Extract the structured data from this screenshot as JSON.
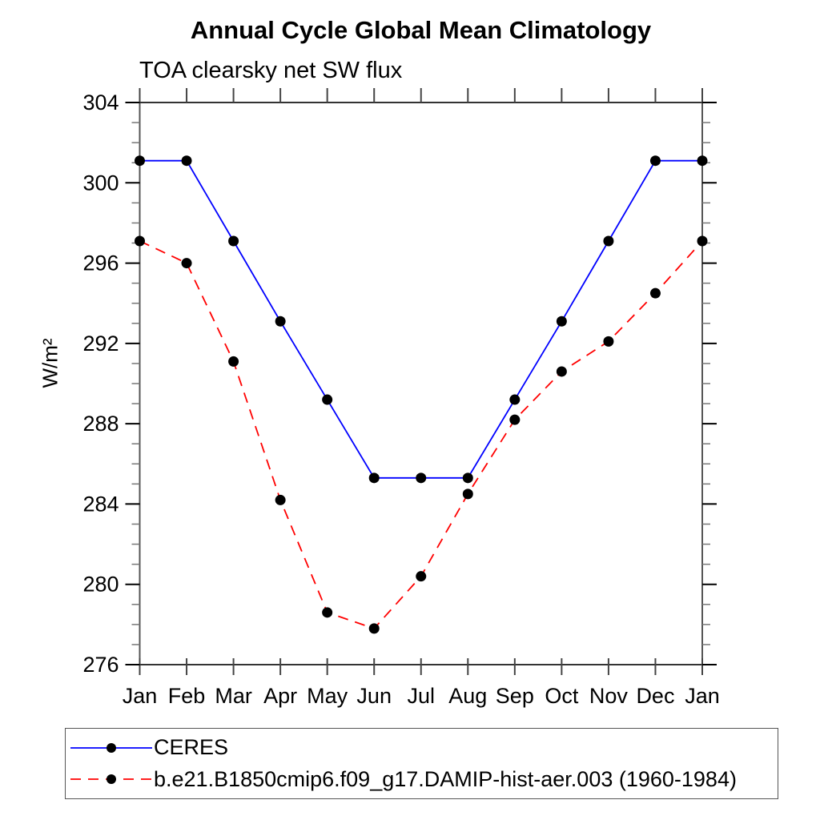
{
  "chart_data": {
    "type": "line",
    "title": "Annual Cycle Global Mean Climatology",
    "subtitle": "TOA clearsky net SW flux",
    "ylabel": "W/m²",
    "xlabel": "",
    "categories": [
      "Jan",
      "Feb",
      "Mar",
      "Apr",
      "May",
      "Jun",
      "Jul",
      "Aug",
      "Sep",
      "Oct",
      "Nov",
      "Dec",
      "Jan"
    ],
    "ylim": [
      276,
      304
    ],
    "y_major_tick_step": 4,
    "y_minor_tick_step": 1,
    "y_major_tick_labels": [
      "276",
      "280",
      "284",
      "288",
      "292",
      "296",
      "300",
      "304"
    ],
    "grid": false,
    "legend_position": "bottom",
    "marker": "filled-circle",
    "marker_color": "#000000",
    "series": [
      {
        "id": "ceres",
        "name": "CERES",
        "color": "#0000ff",
        "style": "solid",
        "values": [
          301.1,
          301.1,
          297.1,
          293.1,
          289.2,
          285.3,
          285.3,
          285.3,
          289.2,
          293.1,
          297.1,
          301.1,
          301.1
        ]
      },
      {
        "id": "model",
        "name": "b.e21.B1850cmip6.f09_g17.DAMIP-hist-aer.003 (1960-1984)",
        "color": "#ff0000",
        "style": "dashed",
        "values": [
          297.1,
          296.0,
          291.1,
          284.2,
          278.6,
          277.8,
          280.4,
          284.5,
          288.2,
          290.6,
          292.1,
          294.5,
          297.1
        ]
      }
    ]
  }
}
